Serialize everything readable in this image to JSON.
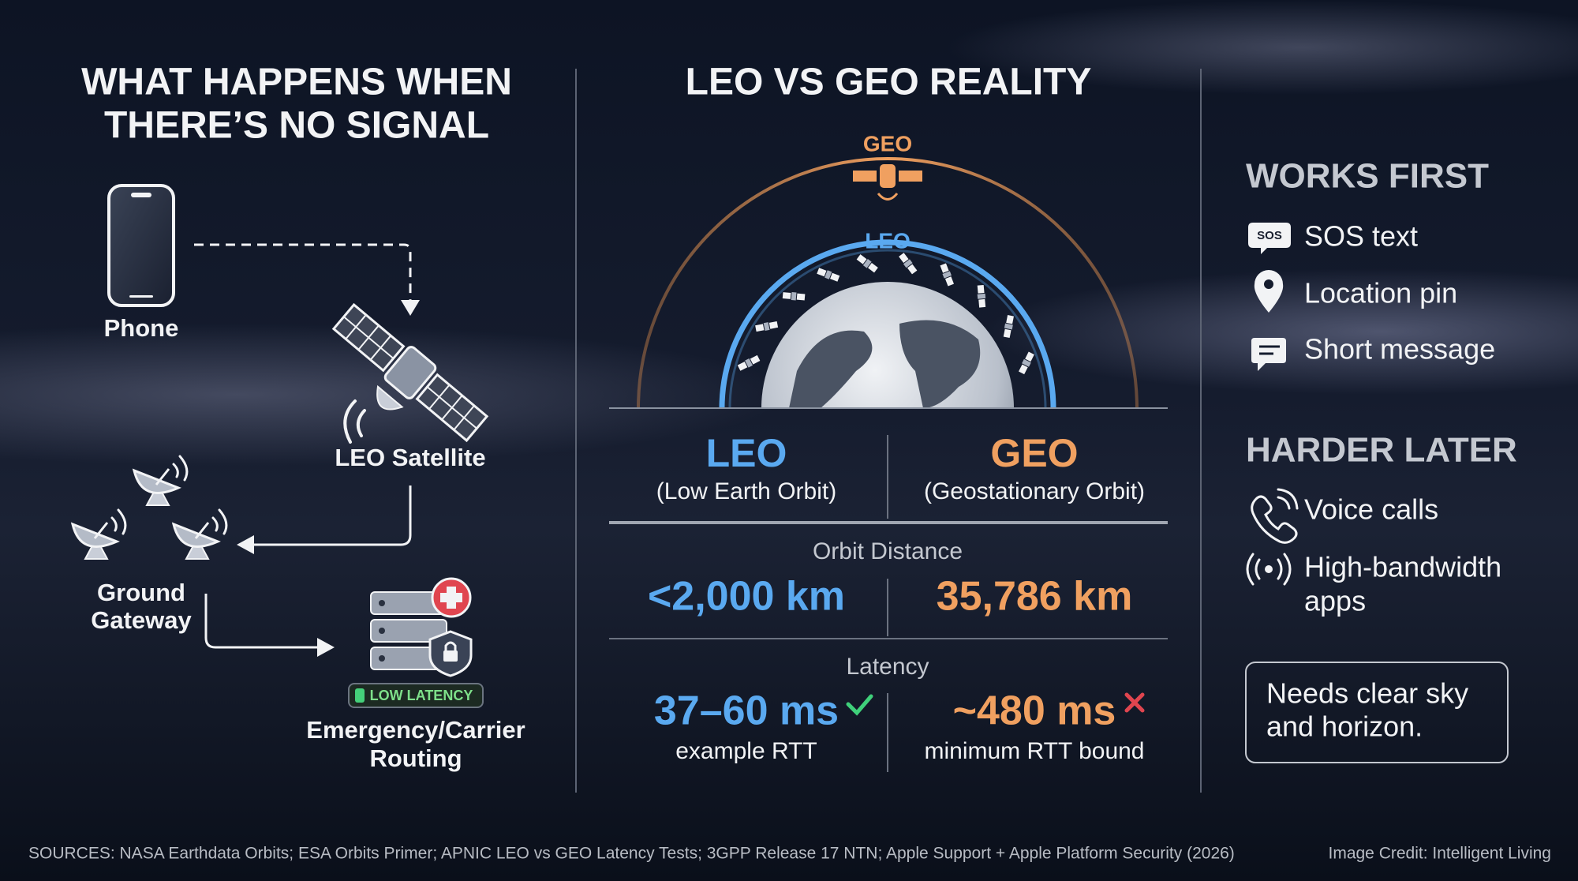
{
  "left": {
    "title": [
      "WHAT HAPPENS WHEN",
      "THERE’S NO SIGNAL"
    ],
    "phone": "Phone",
    "satellite": "LEO Satellite",
    "gateway": [
      "Ground",
      "Gateway"
    ],
    "badge": "LOW LATENCY",
    "routing": [
      "Emergency/Carrier",
      "Routing"
    ]
  },
  "middle": {
    "title": "LEO VS GEO REALITY",
    "geo_label": "GEO",
    "leo_label": "LEO",
    "columns": [
      {
        "name": "LEO",
        "full": "(Low Earth Orbit)"
      },
      {
        "name": "GEO",
        "full": "(Geostationary Orbit)"
      }
    ],
    "rows": [
      {
        "label": "Orbit Distance",
        "values": [
          "<2,000 km",
          "35,786 km"
        ]
      },
      {
        "label": "Latency",
        "values": [
          "37–60 ms",
          "~480 ms"
        ],
        "notes": [
          "example RTT",
          "minimum RTT bound"
        ]
      }
    ]
  },
  "right": {
    "works_first": {
      "title": "WORKS FIRST",
      "sos_icon": "SOS",
      "items": [
        "SOS text",
        "Location pin",
        "Short message"
      ]
    },
    "harder_later": {
      "title": "HARDER LATER",
      "items": [
        [
          "Voice calls"
        ],
        [
          "High-bandwidth",
          "apps"
        ]
      ]
    },
    "note": [
      "Needs clear sky",
      "and horizon."
    ]
  },
  "footer": {
    "sources": "SOURCES: NASA Earthdata Orbits; ESA Orbits Primer; APNIC LEO vs GEO Latency Tests; 3GPP Release 17 NTN; Apple Support + Apple Platform Security (2026)",
    "credit": "Image Credit: Intelligent Living"
  }
}
